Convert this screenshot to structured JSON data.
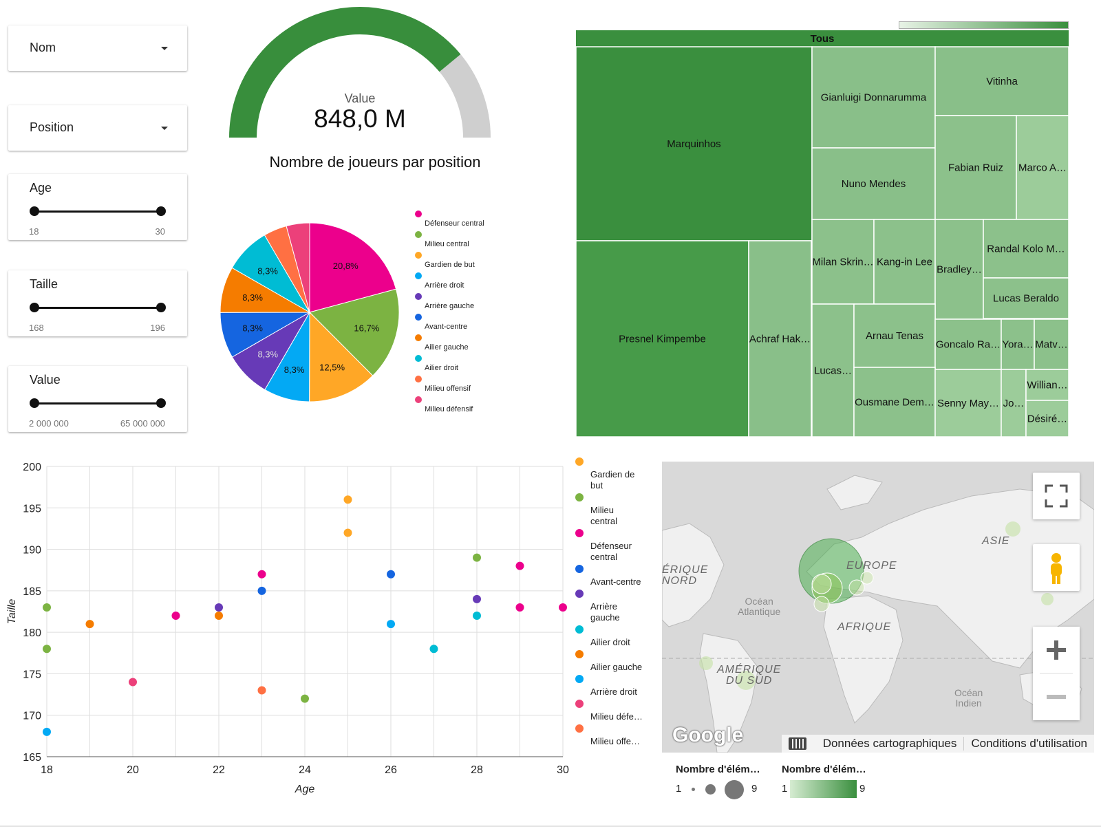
{
  "filters": {
    "nom": {
      "label": "Nom"
    },
    "position": {
      "label": "Position"
    },
    "age": {
      "label": "Age",
      "min": "18",
      "max": "30"
    },
    "taille": {
      "label": "Taille",
      "min": "168",
      "max": "196"
    },
    "value": {
      "label": "Value",
      "min": "2 000 000",
      "max": "65 000 000"
    }
  },
  "gauge": {
    "label": "Value",
    "value": "848,0 M",
    "fraction": 0.78,
    "fill_color": "#388e3c",
    "rest_color": "#cfcfcf"
  },
  "pie": {
    "title": "Nombre de joueurs par position",
    "slices": [
      {
        "name": "Défenseur central",
        "value": 20.8,
        "label": "20,8%",
        "color": "#ec008c"
      },
      {
        "name": "Milieu central",
        "value": 16.7,
        "label": "16,7%",
        "color": "#7cb342"
      },
      {
        "name": "Gardien de but",
        "value": 12.5,
        "label": "12,5%",
        "color": "#ffa726"
      },
      {
        "name": "Arrière droit",
        "value": 8.3,
        "label": "8,3%",
        "color": "#03a9f4"
      },
      {
        "name": "Arrière gauche",
        "value": 8.3,
        "label": "8,3%",
        "color": "#673ab7"
      },
      {
        "name": "Avant-centre",
        "value": 8.3,
        "label": "8,3%",
        "color": "#1565e0"
      },
      {
        "name": "Ailier gauche",
        "value": 8.3,
        "label": "8,3%",
        "color": "#f57c00"
      },
      {
        "name": "Ailier droit",
        "value": 8.3,
        "label": "8,3%",
        "color": "#00bcd4"
      },
      {
        "name": "Milieu offensif",
        "value": 4.2,
        "label": "",
        "color": "#ff7043"
      },
      {
        "name": "Milieu défensif",
        "value": 4.2,
        "label": "",
        "color": "#ec407a"
      }
    ]
  },
  "treemap": {
    "header": "Tous",
    "items": [
      {
        "name": "Marquinhos",
        "weight": 9
      },
      {
        "name": "Presnel Kimpembe",
        "weight": 8
      },
      {
        "name": "Achraf Hak…",
        "weight": 2
      },
      {
        "name": "Gianluigi Donnarumma",
        "weight": 2
      },
      {
        "name": "Vitinha",
        "weight": 2
      },
      {
        "name": "Nuno Mendes",
        "weight": 2
      },
      {
        "name": "Fabian Ruiz",
        "weight": 2
      },
      {
        "name": "Marco A…",
        "weight": 1
      },
      {
        "name": "Milan Skrin…",
        "weight": 1
      },
      {
        "name": "Kang-in Lee",
        "weight": 1
      },
      {
        "name": "Bradley…",
        "weight": 1
      },
      {
        "name": "Randal Kolo M…",
        "weight": 1
      },
      {
        "name": "Lucas Beraldo",
        "weight": 1
      },
      {
        "name": "Lucas…",
        "weight": 1
      },
      {
        "name": "Arnau Tenas",
        "weight": 1
      },
      {
        "name": "Goncalo Ra…",
        "weight": 1
      },
      {
        "name": "Yora…",
        "weight": 1
      },
      {
        "name": "Matv…",
        "weight": 1
      },
      {
        "name": "Ousmane Dem…",
        "weight": 1
      },
      {
        "name": "Senny May…",
        "weight": 1
      },
      {
        "name": "Jo…",
        "weight": 1
      },
      {
        "name": "Willian…",
        "weight": 1
      },
      {
        "name": "Désiré…",
        "weight": 1
      }
    ]
  },
  "chart_data": {
    "type": "scatter",
    "xlabel": "Age",
    "ylabel": "Taille",
    "xlim": [
      18,
      30
    ],
    "ylim": [
      165,
      200
    ],
    "xticks": [
      18,
      20,
      22,
      24,
      26,
      28,
      30
    ],
    "yticks": [
      165,
      170,
      175,
      180,
      185,
      190,
      195,
      200
    ],
    "grid": true,
    "legend_position": "right",
    "series": [
      {
        "name": "Gardien de but",
        "color": "#ffa726",
        "points": [
          [
            25,
            196
          ],
          [
            25,
            192
          ]
        ]
      },
      {
        "name": "Milieu central",
        "color": "#7cb342",
        "points": [
          [
            18,
            183
          ],
          [
            18,
            178
          ],
          [
            24,
            172
          ],
          [
            28,
            189
          ]
        ]
      },
      {
        "name": "Défenseur central",
        "color": "#ec008c",
        "points": [
          [
            21,
            182
          ],
          [
            23,
            187
          ],
          [
            29,
            188
          ],
          [
            29,
            183
          ],
          [
            30,
            183
          ]
        ]
      },
      {
        "name": "Avant-centre",
        "color": "#1565e0",
        "points": [
          [
            23,
            185
          ],
          [
            26,
            187
          ]
        ]
      },
      {
        "name": "Arrière gauche",
        "color": "#673ab7",
        "points": [
          [
            22,
            183
          ],
          [
            28,
            184
          ]
        ]
      },
      {
        "name": "Ailier droit",
        "color": "#00bcd4",
        "points": [
          [
            28,
            182
          ],
          [
            27,
            178
          ]
        ]
      },
      {
        "name": "Ailier gauche",
        "color": "#f57c00",
        "points": [
          [
            19,
            181
          ],
          [
            22,
            182
          ]
        ]
      },
      {
        "name": "Arrière droit",
        "color": "#03a9f4",
        "points": [
          [
            18,
            168
          ],
          [
            26,
            181
          ]
        ]
      },
      {
        "name": "Milieu défe…",
        "color": "#ec407a",
        "points": [
          [
            20,
            174
          ]
        ]
      },
      {
        "name": "Milieu offe…",
        "color": "#ff7043",
        "points": [
          [
            23,
            173
          ]
        ]
      }
    ]
  },
  "map": {
    "labels": {
      "europe": "EUROPE",
      "asie": "ASIE",
      "afrique": "AFRIQUE",
      "amerique_nord": "ÉRIQUE\nNORD",
      "amerique_sud": "AMÉRIQUE\nDU SUD"
    },
    "oceans": {
      "atlantique": "Océan\nAtlantique",
      "indien": "Océan\nIndien"
    },
    "footer": {
      "map_data": "Données cartographiques",
      "terms": "Conditions d'utilisation"
    },
    "logo": "Google",
    "icons": {
      "fullscreen": "fullscreen-icon",
      "pegman": "pegman-icon",
      "zoom_in": "plus-icon",
      "zoom_out": "minus-icon",
      "keyboard": "keyboard-icon"
    }
  },
  "map_legend": {
    "size_title": "Nombre d'élém…",
    "size_min": "1",
    "size_max": "9",
    "color_title": "Nombre d'élém…",
    "color_min": "1",
    "color_max": "9"
  }
}
